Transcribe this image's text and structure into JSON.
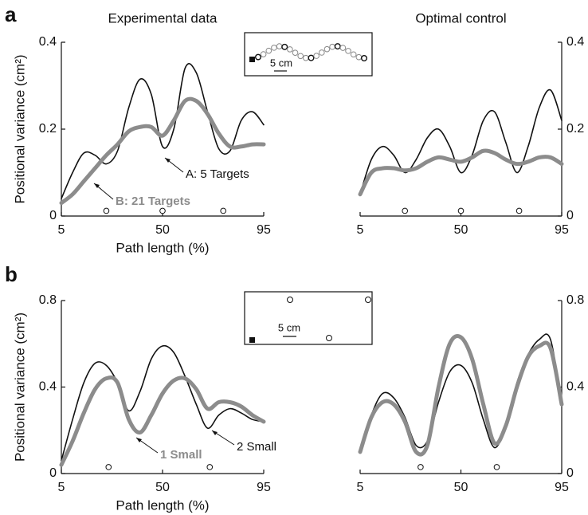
{
  "panel_labels": [
    "a",
    "b"
  ],
  "insets": [
    {
      "scale_label": "5 cm"
    },
    {
      "scale_label": "5 cm"
    }
  ],
  "chart_data": [
    {
      "type": "line",
      "title": "Experimental data",
      "xlabel": "Path length (%)",
      "ylabel": "Positional variance (cm²)",
      "yaxis_side": "left",
      "x": [
        5,
        10,
        15,
        20,
        25,
        30,
        35,
        40,
        45,
        50,
        55,
        60,
        65,
        70,
        75,
        80,
        85,
        90,
        95
      ],
      "xlim": [
        5,
        95
      ],
      "xticks": [
        5,
        50,
        95
      ],
      "ylim": [
        0,
        0.4
      ],
      "yticks": [
        0,
        0.2,
        0.4
      ],
      "series": [
        {
          "name": "A: 5 Targets",
          "color": "#111111",
          "linewidth": 1.6,
          "values": [
            0.04,
            0.1,
            0.145,
            0.14,
            0.12,
            0.15,
            0.25,
            0.315,
            0.28,
            0.16,
            0.2,
            0.34,
            0.33,
            0.24,
            0.155,
            0.15,
            0.22,
            0.24,
            0.21
          ]
        },
        {
          "name": "B: 21 Targets",
          "color": "#8c8c8c",
          "linewidth": 5,
          "values": [
            0.03,
            0.05,
            0.08,
            0.11,
            0.14,
            0.165,
            0.195,
            0.205,
            0.205,
            0.185,
            0.22,
            0.265,
            0.265,
            0.235,
            0.19,
            0.16,
            0.16,
            0.165,
            0.165
          ]
        }
      ],
      "markers": {
        "x": [
          25,
          50,
          77
        ],
        "values": [
          0.012,
          0.012,
          0.012
        ]
      }
    },
    {
      "type": "line",
      "title": "Optimal control",
      "yaxis_side": "right",
      "x": [
        5,
        10,
        15,
        20,
        25,
        30,
        35,
        40,
        45,
        50,
        55,
        60,
        65,
        70,
        75,
        80,
        85,
        90,
        95
      ],
      "xlim": [
        5,
        95
      ],
      "xticks": [
        5,
        50,
        95
      ],
      "ylim": [
        0,
        0.4
      ],
      "yticks": [
        0,
        0.2,
        0.4
      ],
      "series": [
        {
          "color": "#111111",
          "linewidth": 1.6,
          "values": [
            0.05,
            0.13,
            0.16,
            0.14,
            0.1,
            0.13,
            0.18,
            0.2,
            0.16,
            0.1,
            0.14,
            0.22,
            0.24,
            0.17,
            0.1,
            0.16,
            0.25,
            0.29,
            0.22
          ]
        },
        {
          "color": "#8c8c8c",
          "linewidth": 5,
          "values": [
            0.05,
            0.1,
            0.11,
            0.11,
            0.105,
            0.11,
            0.125,
            0.135,
            0.13,
            0.125,
            0.135,
            0.15,
            0.145,
            0.13,
            0.12,
            0.125,
            0.135,
            0.135,
            0.12
          ]
        }
      ],
      "markers": {
        "x": [
          25,
          50,
          76
        ],
        "values": [
          0.012,
          0.012,
          0.012
        ]
      }
    },
    {
      "type": "line",
      "xlabel": "Path length (%)",
      "ylabel": "Positional variance (cm²)",
      "yaxis_side": "left",
      "x": [
        5,
        10,
        15,
        20,
        25,
        30,
        35,
        40,
        45,
        50,
        55,
        60,
        65,
        70,
        75,
        80,
        85,
        90,
        95
      ],
      "xlim": [
        5,
        95
      ],
      "xticks": [
        5,
        50,
        95
      ],
      "ylim": [
        0,
        0.8
      ],
      "yticks": [
        0,
        0.4,
        0.8
      ],
      "series": [
        {
          "name": "2 Small",
          "color": "#111111",
          "linewidth": 1.6,
          "values": [
            0.06,
            0.25,
            0.42,
            0.51,
            0.5,
            0.42,
            0.29,
            0.38,
            0.53,
            0.59,
            0.56,
            0.45,
            0.32,
            0.21,
            0.27,
            0.3,
            0.28,
            0.25,
            0.24
          ]
        },
        {
          "name": "1 Small",
          "color": "#8c8c8c",
          "linewidth": 5,
          "values": [
            0.04,
            0.15,
            0.28,
            0.39,
            0.44,
            0.42,
            0.25,
            0.19,
            0.27,
            0.37,
            0.43,
            0.44,
            0.39,
            0.3,
            0.33,
            0.33,
            0.31,
            0.27,
            0.24
          ]
        }
      ],
      "markers": {
        "x": [
          26,
          71
        ],
        "values": [
          0.03,
          0.03
        ]
      }
    },
    {
      "type": "line",
      "yaxis_side": "right",
      "x": [
        5,
        10,
        15,
        20,
        25,
        30,
        35,
        40,
        45,
        50,
        55,
        60,
        65,
        70,
        75,
        80,
        85,
        90,
        95
      ],
      "xlim": [
        5,
        95
      ],
      "xticks": [
        5,
        50,
        95
      ],
      "ylim": [
        0,
        0.8
      ],
      "yticks": [
        0,
        0.4,
        0.8
      ],
      "series": [
        {
          "color": "#111111",
          "linewidth": 1.6,
          "values": [
            0.1,
            0.27,
            0.37,
            0.35,
            0.26,
            0.13,
            0.15,
            0.33,
            0.47,
            0.5,
            0.42,
            0.25,
            0.12,
            0.22,
            0.42,
            0.55,
            0.62,
            0.62,
            0.32
          ]
        },
        {
          "color": "#8c8c8c",
          "linewidth": 5,
          "values": [
            0.1,
            0.26,
            0.33,
            0.32,
            0.24,
            0.1,
            0.13,
            0.4,
            0.6,
            0.63,
            0.53,
            0.32,
            0.14,
            0.22,
            0.4,
            0.54,
            0.59,
            0.58,
            0.32
          ]
        }
      ],
      "markers": {
        "x": [
          32,
          66
        ],
        "values": [
          0.03,
          0.03
        ]
      }
    }
  ]
}
